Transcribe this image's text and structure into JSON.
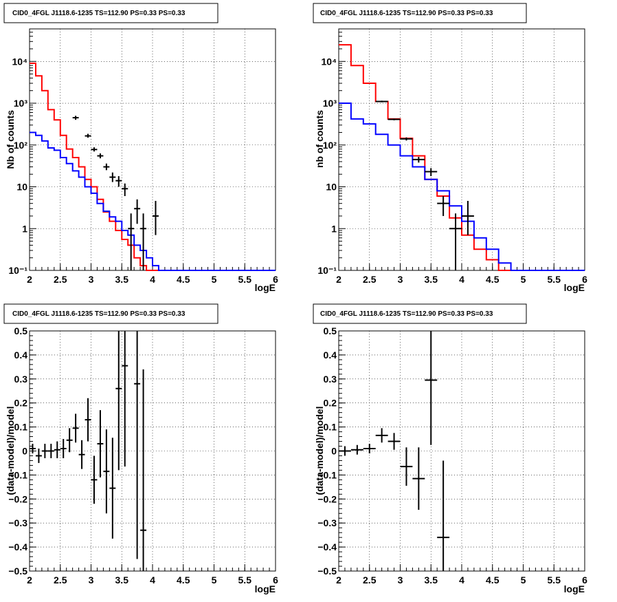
{
  "chart_data": [
    {
      "type": "line",
      "title": "CID0_4FGL J1118.6-1235 TS=112.90 PS=0.33 PS=0.33",
      "xlabel": "logE",
      "ylabel": "Nb of counts",
      "xlim": [
        2,
        6
      ],
      "ylim": [
        0.1,
        60000
      ],
      "log_y": true,
      "grid": true,
      "x_ticks": [
        "2",
        "2.5",
        "3",
        "3.5",
        "4",
        "4.5",
        "5",
        "5.5",
        "6"
      ],
      "y_ticks": [
        "10⁻¹",
        "1",
        "10",
        "10²",
        "10³",
        "10⁴"
      ],
      "bin_width": 0.1,
      "series": [
        {
          "color": "#ff0000",
          "style": "histogram",
          "bin_edges_start": 2.0,
          "values": [
            9000,
            4500,
            2000,
            700,
            400,
            170,
            80,
            50,
            30,
            15,
            10,
            5,
            2.5,
            1.5,
            0.9,
            0.55,
            0.4,
            0.2,
            0.13,
            0.1,
            0.1,
            0.1,
            0.1,
            0.1,
            0.1,
            0.1,
            0.1,
            0.1,
            0.1,
            0.1,
            0.1,
            0.1,
            0.1,
            0.1,
            0.1,
            0.1,
            0.1,
            0.1,
            0.1,
            0.1
          ]
        },
        {
          "color": "#0000ff",
          "style": "histogram",
          "bin_edges_start": 2.0,
          "values": [
            200,
            170,
            125,
            85,
            75,
            50,
            36,
            24,
            17,
            10,
            7,
            4,
            2.6,
            1.9,
            1.5,
            0.9,
            0.7,
            0.4,
            0.3,
            0.2,
            0.13,
            0.1,
            0.1,
            0.1,
            0.1,
            0.1,
            0.1,
            0.1,
            0.1,
            0.1,
            0.1,
            0.1,
            0.1,
            0.1,
            0.1,
            0.1,
            0.1,
            0.1,
            0.1,
            0.1
          ]
        }
      ],
      "data_points": [
        {
          "x": 2.75,
          "y": 450,
          "lo": 400,
          "hi": 500
        },
        {
          "x": 2.95,
          "y": 165,
          "lo": 150,
          "hi": 185
        },
        {
          "x": 3.05,
          "y": 78,
          "lo": 70,
          "hi": 88
        },
        {
          "x": 3.15,
          "y": 55,
          "lo": 48,
          "hi": 63
        },
        {
          "x": 3.25,
          "y": 30,
          "lo": 25,
          "hi": 36
        },
        {
          "x": 3.35,
          "y": 17,
          "lo": 13,
          "hi": 22
        },
        {
          "x": 3.45,
          "y": 14,
          "lo": 10,
          "hi": 18
        },
        {
          "x": 3.55,
          "y": 9,
          "lo": 6,
          "hi": 12
        },
        {
          "x": 3.65,
          "y": 1,
          "lo": 0.1,
          "hi": 2.3
        },
        {
          "x": 3.75,
          "y": 3,
          "lo": 1.3,
          "hi": 5
        },
        {
          "x": 3.85,
          "y": 1,
          "lo": 0.1,
          "hi": 2.3
        },
        {
          "x": 4.05,
          "y": 2,
          "lo": 0.7,
          "hi": 4.6
        }
      ]
    },
    {
      "type": "line",
      "title": "CID0_4FGL J1118.6-1235 TS=112.90 PS=0.33 PS=0.33",
      "xlabel": "logE",
      "ylabel": "nb of counts",
      "xlim": [
        2,
        6
      ],
      "ylim": [
        0.1,
        60000
      ],
      "log_y": true,
      "grid": true,
      "x_ticks": [
        "2",
        "2.5",
        "3",
        "3.5",
        "4",
        "4.5",
        "5",
        "5.5",
        "6"
      ],
      "y_ticks": [
        "10⁻¹",
        "1",
        "10",
        "10²",
        "10³",
        "10⁴"
      ],
      "bin_width": 0.2,
      "series": [
        {
          "color": "#ff0000",
          "style": "histogram",
          "bin_edges_start": 2.0,
          "values": [
            25000,
            8000,
            3000,
            1100,
            420,
            145,
            55,
            15,
            6,
            1.8,
            0.7,
            0.32,
            0.18,
            0.1,
            0.1,
            0.1,
            0.1,
            0.1,
            0.1,
            0.1
          ]
        },
        {
          "color": "#0000ff",
          "style": "histogram",
          "bin_edges_start": 2.0,
          "values": [
            1000,
            420,
            320,
            180,
            100,
            55,
            30,
            15,
            8,
            3.5,
            1.5,
            0.6,
            0.32,
            0.15,
            0.1,
            0.1,
            0.1,
            0.1,
            0.1,
            0.1
          ]
        }
      ],
      "data_points": [
        {
          "x": 2.7,
          "y": 1100,
          "lo": 1050,
          "hi": 1150
        },
        {
          "x": 2.9,
          "y": 410,
          "lo": 390,
          "hi": 430
        },
        {
          "x": 3.1,
          "y": 140,
          "lo": 128,
          "hi": 152
        },
        {
          "x": 3.3,
          "y": 45,
          "lo": 38,
          "hi": 52
        },
        {
          "x": 3.5,
          "y": 23,
          "lo": 18,
          "hi": 28
        },
        {
          "x": 3.7,
          "y": 4,
          "lo": 2,
          "hi": 6
        },
        {
          "x": 3.9,
          "y": 1,
          "lo": 0.1,
          "hi": 2.3
        },
        {
          "x": 4.1,
          "y": 2,
          "lo": 0.7,
          "hi": 4.6
        }
      ]
    },
    {
      "type": "scatter",
      "title": "CID0_4FGL J1118.6-1235 TS=112.90 PS=0.33 PS=0.33",
      "xlabel": "logE",
      "ylabel": "(data-model)/model",
      "xlim": [
        2,
        6
      ],
      "ylim": [
        -0.5,
        0.5
      ],
      "grid": true,
      "x_ticks": [
        "2",
        "2.5",
        "3",
        "3.5",
        "4",
        "4.5",
        "5",
        "5.5",
        "6"
      ],
      "y_ticks": [
        "−0.5",
        "−0.4",
        "−0.3",
        "−0.2",
        "−0.1",
        "0",
        "0.1",
        "0.2",
        "0.3",
        "0.4",
        "0.5"
      ],
      "x_halfwidth": 0.05,
      "points": [
        {
          "x": 2.05,
          "y": 0.01,
          "err": 0.02
        },
        {
          "x": 2.15,
          "y": -0.02,
          "err": 0.03
        },
        {
          "x": 2.25,
          "y": 0.0,
          "err": 0.03
        },
        {
          "x": 2.35,
          "y": 0.0,
          "err": 0.03
        },
        {
          "x": 2.45,
          "y": 0.005,
          "err": 0.035
        },
        {
          "x": 2.55,
          "y": 0.01,
          "err": 0.04
        },
        {
          "x": 2.65,
          "y": 0.045,
          "err": 0.05
        },
        {
          "x": 2.75,
          "y": 0.095,
          "err": 0.06
        },
        {
          "x": 2.85,
          "y": -0.015,
          "err": 0.06
        },
        {
          "x": 2.95,
          "y": 0.13,
          "err": 0.09
        },
        {
          "x": 3.05,
          "y": -0.12,
          "err": 0.1
        },
        {
          "x": 3.15,
          "y": 0.03,
          "err": 0.14
        },
        {
          "x": 3.25,
          "y": -0.085,
          "err": 0.175
        },
        {
          "x": 3.35,
          "y": -0.155,
          "err": 0.21
        },
        {
          "x": 3.45,
          "y": 0.26,
          "err": 0.34
        },
        {
          "x": 3.55,
          "y": 0.355,
          "err": 0.42
        },
        {
          "x": 3.75,
          "y": 0.28,
          "err": 0.73
        },
        {
          "x": 3.85,
          "y": -0.33,
          "err": 0.67
        }
      ]
    },
    {
      "type": "scatter",
      "title": "CID0_4FGL J1118.6-1235 TS=112.90 PS=0.33 PS=0.33",
      "xlabel": "logE",
      "ylabel": "(data-model)/model",
      "xlim": [
        2,
        6
      ],
      "ylim": [
        -0.5,
        0.5
      ],
      "grid": true,
      "x_ticks": [
        "2",
        "2.5",
        "3",
        "3.5",
        "4",
        "4.5",
        "5",
        "5.5",
        "6"
      ],
      "y_ticks": [
        "−0.5",
        "−0.4",
        "−0.3",
        "−0.2",
        "−0.1",
        "0",
        "0.1",
        "0.2",
        "0.3",
        "0.4",
        "0.5"
      ],
      "x_halfwidth": 0.1,
      "points": [
        {
          "x": 2.1,
          "y": 0.0,
          "err": 0.02
        },
        {
          "x": 2.3,
          "y": 0.005,
          "err": 0.02
        },
        {
          "x": 2.5,
          "y": 0.01,
          "err": 0.02
        },
        {
          "x": 2.7,
          "y": 0.065,
          "err": 0.03
        },
        {
          "x": 2.9,
          "y": 0.04,
          "err": 0.035
        },
        {
          "x": 3.1,
          "y": -0.065,
          "err": 0.08
        },
        {
          "x": 3.3,
          "y": -0.115,
          "err": 0.13
        },
        {
          "x": 3.5,
          "y": 0.295,
          "err": 0.27
        },
        {
          "x": 3.7,
          "y": -0.36,
          "err": 0.32
        }
      ]
    }
  ]
}
